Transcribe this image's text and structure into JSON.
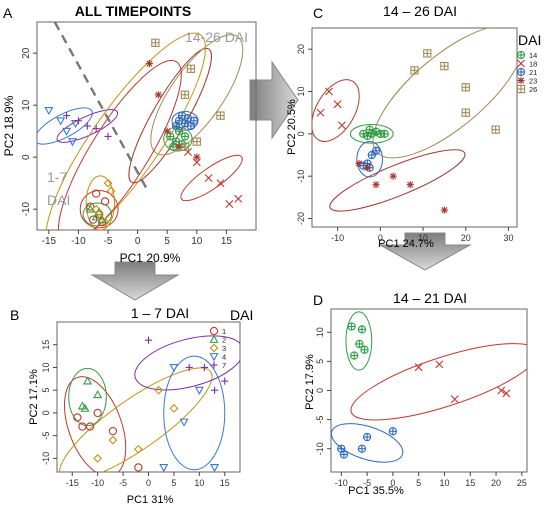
{
  "chart_data": [
    {
      "panel_label": "A",
      "type": "scatter",
      "title": "ALL TIMEPOINTS",
      "xlabel": "PC1 20.9%",
      "ylabel": "PC2 18.9%",
      "xlim": [
        -17,
        20
      ],
      "ylim": [
        -14,
        26
      ],
      "xticks": [
        -15,
        -10,
        -5,
        0,
        5,
        10,
        15
      ],
      "yticks": [
        -10,
        0,
        10,
        20
      ],
      "annotations": [
        "14-26 DAI",
        "1-7",
        "DAI"
      ],
      "divider": {
        "x1": -14,
        "y1": 26,
        "x2": 1.5,
        "y2": -6
      },
      "series": [
        {
          "name": "1",
          "color": "#c0392b",
          "marker": "circle",
          "points": [
            [
              -7,
              -7
            ],
            [
              -5.5,
              -8.5
            ],
            [
              -8,
              -9.5
            ],
            [
              -6.5,
              -11
            ],
            [
              -7.5,
              -12
            ],
            [
              -6,
              -12.5
            ]
          ]
        },
        {
          "name": "2",
          "color": "#2e9e44",
          "marker": "triangle",
          "points": [
            [
              -8,
              -10
            ],
            [
              -7,
              -11.5
            ],
            [
              -6,
              -12
            ],
            [
              -6.5,
              -10.5
            ]
          ]
        },
        {
          "name": "3",
          "color": "#c89010",
          "marker": "diamond",
          "points": [
            [
              -5,
              -5
            ],
            [
              -4.5,
              -6.5
            ],
            [
              -6.5,
              -11
            ],
            [
              -5.5,
              -12.5
            ],
            [
              -7,
              -10
            ]
          ]
        },
        {
          "name": "4",
          "color": "#3a78d8",
          "marker": "triangle-down",
          "points": [
            [
              -15,
              9
            ],
            [
              -13,
              7
            ],
            [
              -12,
              5
            ],
            [
              -10.5,
              6.5
            ],
            [
              -11,
              3
            ]
          ]
        },
        {
          "name": "7",
          "color": "#7a2fa8",
          "marker": "plus",
          "points": [
            [
              -12,
              8
            ],
            [
              -10,
              7
            ],
            [
              -8.5,
              6
            ],
            [
              -7,
              5.5
            ],
            [
              -5,
              4
            ]
          ]
        },
        {
          "name": "14",
          "color": "#2e9e44",
          "marker": "circle-plus",
          "points": [
            [
              5.5,
              4
            ],
            [
              6.5,
              3
            ],
            [
              7,
              5
            ],
            [
              8,
              4
            ],
            [
              6,
              2
            ],
            [
              7.5,
              2.5
            ]
          ]
        },
        {
          "name": "18",
          "color": "#c0392b",
          "marker": "cross",
          "points": [
            [
              8.5,
              1
            ],
            [
              10,
              -1
            ],
            [
              12,
              -4
            ],
            [
              14,
              -5
            ],
            [
              17,
              -8
            ],
            [
              15.5,
              -9
            ]
          ]
        },
        {
          "name": "21",
          "color": "#2d69c2",
          "marker": "circle-plus",
          "points": [
            [
              7,
              7
            ],
            [
              7.5,
              8
            ],
            [
              8,
              6.5
            ],
            [
              8.5,
              7.5
            ],
            [
              9,
              6
            ],
            [
              6.5,
              6
            ],
            [
              9.5,
              7
            ]
          ]
        },
        {
          "name": "23",
          "color": "#a5352b",
          "marker": "asterisk",
          "points": [
            [
              2,
              18
            ],
            [
              3.5,
              12
            ],
            [
              5,
              5
            ],
            [
              10,
              0
            ],
            [
              7,
              2
            ]
          ]
        },
        {
          "name": "26",
          "color": "#a48a55",
          "marker": "square-plus",
          "points": [
            [
              3,
              22
            ],
            [
              9,
              17
            ],
            [
              8,
              12
            ],
            [
              14,
              8
            ],
            [
              10,
              3
            ],
            [
              8,
              2
            ]
          ]
        }
      ]
    },
    {
      "panel_label": "B",
      "type": "scatter",
      "title": "1 – 7 DAI",
      "xlabel": "PC1 31%",
      "ylabel": "PC2 17.1%",
      "xlim": [
        -18,
        18
      ],
      "ylim": [
        -13,
        20
      ],
      "xticks": [
        -15,
        -10,
        -5,
        0,
        5,
        10,
        15
      ],
      "yticks": [
        -10,
        -5,
        0,
        5,
        10,
        15
      ],
      "legend_title": "DAI",
      "legend": [
        "1",
        "2",
        "3",
        "4",
        "7"
      ],
      "series": [
        {
          "name": "1",
          "color": "#c0392b",
          "marker": "circle",
          "points": [
            [
              -14,
              -1
            ],
            [
              -13,
              -3
            ],
            [
              -10,
              0
            ],
            [
              -11.5,
              -3
            ],
            [
              -7,
              -4
            ],
            [
              -2,
              -12
            ]
          ]
        },
        {
          "name": "2",
          "color": "#2e9e44",
          "marker": "triangle",
          "points": [
            [
              -12,
              7
            ],
            [
              -10,
              4
            ],
            [
              -12.5,
              1
            ],
            [
              -13,
              1.5
            ]
          ]
        },
        {
          "name": "3",
          "color": "#c89010",
          "marker": "diamond",
          "points": [
            [
              -10,
              -10
            ],
            [
              -7,
              -6
            ],
            [
              -2,
              -8
            ],
            [
              2,
              5
            ],
            [
              5,
              1
            ]
          ]
        },
        {
          "name": "4",
          "color": "#3a78d8",
          "marker": "triangle-down",
          "points": [
            [
              5,
              10
            ],
            [
              10,
              5
            ],
            [
              13,
              -12
            ],
            [
              3,
              -12
            ],
            [
              7,
              -2
            ]
          ]
        },
        {
          "name": "7",
          "color": "#7a2fa8",
          "marker": "plus",
          "points": [
            [
              0,
              16
            ],
            [
              8,
              10
            ],
            [
              11,
              10
            ],
            [
              13,
              5
            ],
            [
              15,
              7
            ]
          ]
        }
      ]
    },
    {
      "panel_label": "C",
      "type": "scatter",
      "title": "14 – 26 DAI",
      "xlabel": "PC1 24.7%",
      "ylabel": "PC2 20.5%",
      "xlim": [
        -16,
        32
      ],
      "ylim": [
        -22,
        25
      ],
      "xticks": [
        -10,
        0,
        10,
        20,
        30
      ],
      "yticks": [
        -20,
        -10,
        0,
        10,
        20
      ],
      "legend_title": "DAI",
      "legend": [
        "14",
        "18",
        "21",
        "23",
        "26"
      ],
      "series": [
        {
          "name": "14",
          "color": "#2e9e44",
          "marker": "circle-plus",
          "points": [
            [
              -4,
              0
            ],
            [
              -3,
              -0.5
            ],
            [
              -2,
              0
            ],
            [
              -1,
              0.5
            ],
            [
              0,
              0
            ],
            [
              -2.5,
              1
            ],
            [
              1,
              0
            ]
          ]
        },
        {
          "name": "18",
          "color": "#c0392b",
          "marker": "cross",
          "points": [
            [
              -12,
              10
            ],
            [
              -10,
              7
            ],
            [
              -14,
              5
            ],
            [
              -9,
              2
            ]
          ]
        },
        {
          "name": "21",
          "color": "#2d69c2",
          "marker": "circle-plus",
          "points": [
            [
              -3,
              -7
            ],
            [
              -2,
              -5
            ],
            [
              -4,
              -7.5
            ],
            [
              -1,
              -4
            ],
            [
              -2.5,
              -8
            ]
          ]
        },
        {
          "name": "23",
          "color": "#a5352b",
          "marker": "asterisk",
          "points": [
            [
              -5,
              -7
            ],
            [
              -3,
              -8
            ],
            [
              -1,
              -12
            ],
            [
              3,
              -10
            ],
            [
              7,
              -12
            ],
            [
              15,
              -18
            ]
          ]
        },
        {
          "name": "26",
          "color": "#a48a55",
          "marker": "square-plus",
          "points": [
            [
              8,
              15
            ],
            [
              11,
              19
            ],
            [
              15,
              16
            ],
            [
              20,
              11
            ],
            [
              20,
              5
            ],
            [
              27,
              1
            ]
          ]
        }
      ]
    },
    {
      "panel_label": "D",
      "type": "scatter",
      "title": "14 – 21 DAI",
      "xlabel": "PC1 35.5%",
      "ylabel": "PC2 17.9%",
      "xlim": [
        -12,
        26
      ],
      "ylim": [
        -14,
        14
      ],
      "xticks": [
        -10,
        -5,
        0,
        5,
        10,
        15,
        20,
        25
      ],
      "yticks": [
        -10,
        -5,
        0,
        5,
        10
      ],
      "series": [
        {
          "name": "14",
          "color": "#2e9e44",
          "marker": "circle-plus",
          "points": [
            [
              -8,
              11
            ],
            [
              -6,
              10.5
            ],
            [
              -6.5,
              8
            ],
            [
              -5.5,
              7
            ],
            [
              -7.5,
              6
            ]
          ]
        },
        {
          "name": "18",
          "color": "#c0392b",
          "marker": "cross",
          "points": [
            [
              5,
              4
            ],
            [
              9,
              4.5
            ],
            [
              12,
              -1.5
            ],
            [
              21,
              0
            ],
            [
              22,
              -0.5
            ]
          ]
        },
        {
          "name": "21",
          "color": "#2d69c2",
          "marker": "circle-plus",
          "points": [
            [
              -10,
              -10
            ],
            [
              -9.5,
              -11
            ],
            [
              -6,
              -10
            ],
            [
              -5,
              -8
            ],
            [
              0,
              -7
            ]
          ]
        }
      ]
    }
  ]
}
